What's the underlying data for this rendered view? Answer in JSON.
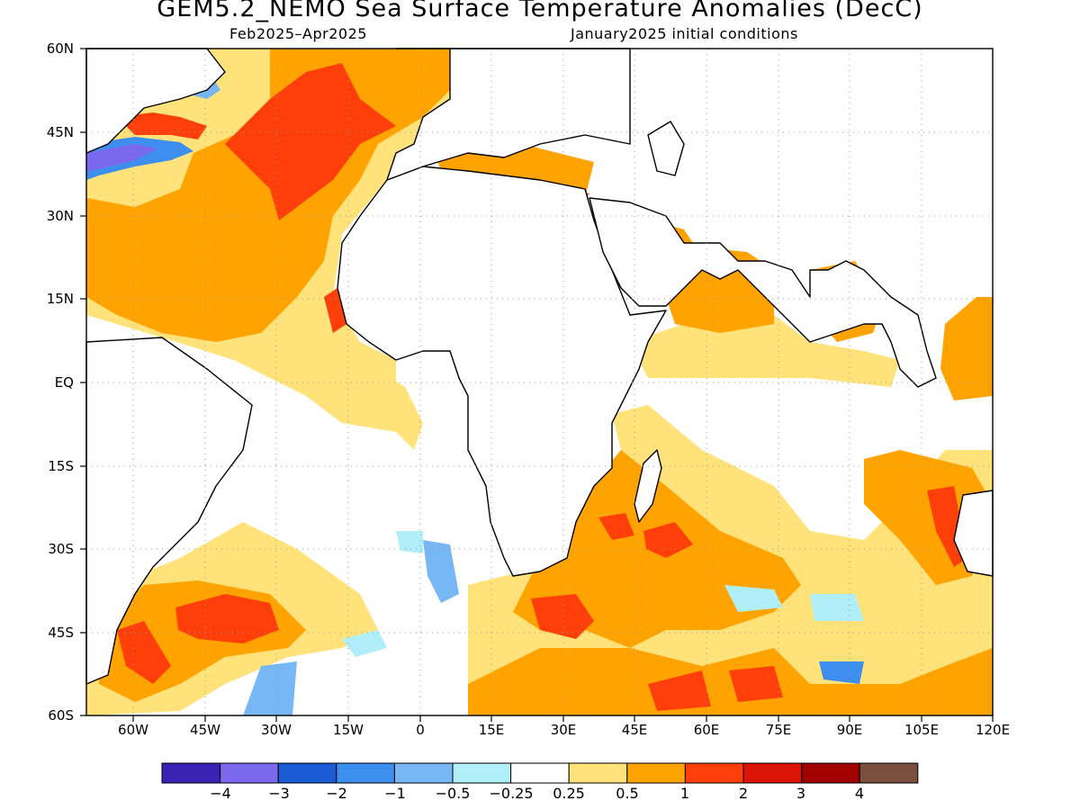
{
  "title": "GEM5.2_NEMO Sea Surface Temperature Anomalies (DecC)",
  "subtitle_left": "Feb2025–Apr2025",
  "subtitle_right": "January2025 initial conditions",
  "axes": {
    "lat_labels": [
      "60N",
      "45N",
      "30N",
      "15N",
      "EQ",
      "15S",
      "30S",
      "45S",
      "60S"
    ],
    "lon_labels": [
      "60W",
      "45W",
      "30W",
      "15W",
      "0",
      "15E",
      "30E",
      "45E",
      "60E",
      "75E",
      "90E",
      "105E",
      "120E"
    ],
    "lat_range": [
      -60,
      60
    ],
    "lon_range": [
      -70,
      120
    ],
    "grid": "dotted"
  },
  "colorbar": {
    "labels": [
      "−4",
      "−3",
      "−2",
      "−1",
      "−0.5",
      "−0.25",
      "0.25",
      "0.5",
      "1",
      "2",
      "3",
      "4"
    ],
    "colors": [
      "#3a22b4",
      "#7b68ee",
      "#1c5bd6",
      "#3e8ef0",
      "#78b7f5",
      "#b0eefa",
      "#ffffff",
      "#ffe27a",
      "#ffa300",
      "#ff3f0a",
      "#dc1405",
      "#a00000",
      "#7a4f3e"
    ]
  },
  "colors": {
    "land_outline": "#000000",
    "ocean_neutral": "#ffffff"
  }
}
